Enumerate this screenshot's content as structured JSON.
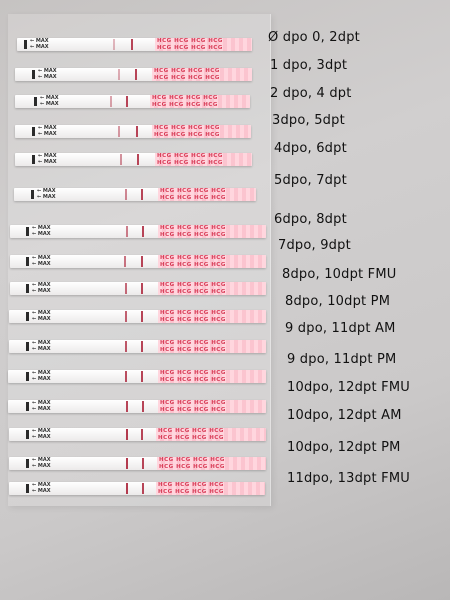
{
  "strip_text": {
    "max_label": "← MAX\n← MAX",
    "brand": "HCG HCG HCG HCG\nHCG HCG HCG HCG"
  },
  "tests": [
    {
      "label": "Ø dpo 0, 2dpt"
    },
    {
      "label": "1 dpo, 3dpt"
    },
    {
      "label": "2 dpo, 4 dpt"
    },
    {
      "label": "3dpo, 5dpt"
    },
    {
      "label": "4dpo, 6dpt"
    },
    {
      "label": "5dpo, 7dpt"
    },
    {
      "label": "6dpo, 8dpt"
    },
    {
      "label": "7dpo, 9dpt"
    },
    {
      "label": "8dpo, 10dpt FMU"
    },
    {
      "label": "8dpo, 10dpt PM"
    },
    {
      "label": "9 dpo, 11dpt AM"
    },
    {
      "label": "9 dpo, 11dpt PM"
    },
    {
      "label": "10dpo, 12dpt FMU"
    },
    {
      "label": "10dpo, 12dpt AM"
    },
    {
      "label": "10dpo, 12dpt PM"
    },
    {
      "label": "11dpo, 13dpt FMU"
    }
  ],
  "colors": {
    "line": "#b33a4e",
    "handle_text": "#d83b56"
  }
}
